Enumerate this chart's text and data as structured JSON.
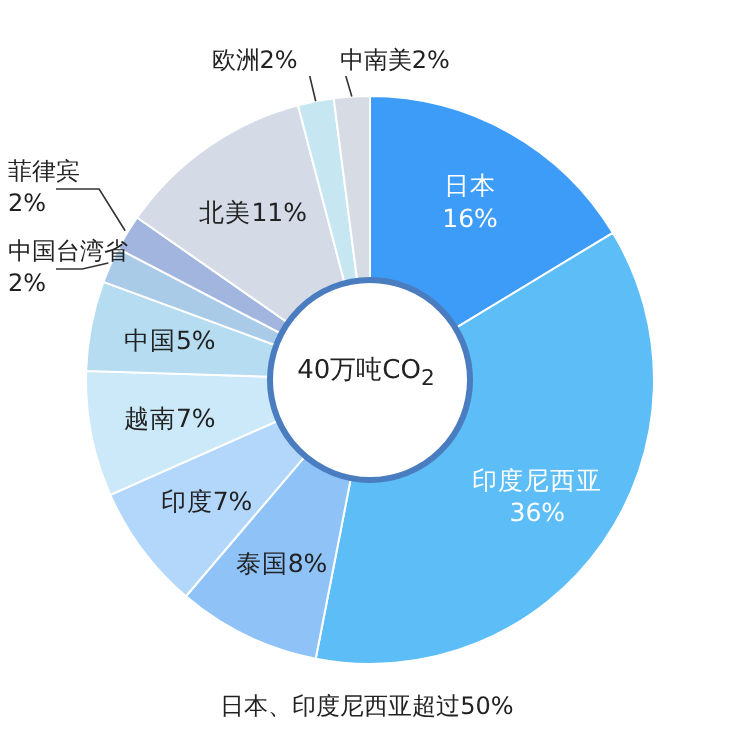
{
  "chart_data": {
    "type": "donut",
    "title": "40万吨CO$_{2}$",
    "categories": [
      "日本",
      "印度尼西亚",
      "泰国",
      "印度",
      "越南",
      "中国",
      "中国台湾省",
      "菲律宾",
      "北美",
      "欧洲",
      "中南美"
    ],
    "values": [
      16,
      36,
      8,
      7,
      7,
      5,
      2,
      2,
      11,
      2,
      2
    ],
    "value_labels": [
      "16%",
      "36%",
      "8%",
      "7%",
      "7%",
      "5%",
      "2%",
      "2%",
      "11%",
      "2%",
      "2%"
    ],
    "colors": [
      "#3d9cf7",
      "#5cbdf7",
      "#8fc3f8",
      "#b2d7fb",
      "#cbe9f8",
      "#b5dcf0",
      "#a9cbe7",
      "#a2b5de",
      "#d4dbe7",
      "#c6e6f1",
      "#d7dce4"
    ],
    "data_labels": true,
    "annotations": [
      "日本、印度尼西亚超过50%"
    ]
  }
}
